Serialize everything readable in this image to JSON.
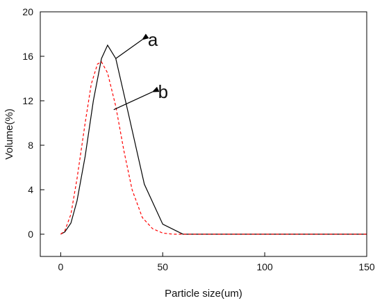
{
  "chart_data": {
    "type": "line",
    "title": "",
    "xlabel": "Particle size(um)",
    "ylabel": "Volume(%)",
    "xlim": [
      -10,
      150
    ],
    "ylim": [
      -2,
      20
    ],
    "xticks": [
      0,
      50,
      100,
      150
    ],
    "yticks": [
      0,
      4,
      8,
      12,
      16,
      20
    ],
    "grid": false,
    "legend": "none",
    "series": [
      {
        "id": "a",
        "color": "#000000",
        "dash": "solid",
        "x": [
          0,
          2,
          5,
          8,
          12,
          16,
          20,
          23,
          27,
          33,
          41,
          50,
          60,
          80,
          100,
          120,
          150
        ],
        "y": [
          0,
          0.2,
          1.0,
          3.0,
          7.0,
          12.0,
          15.8,
          17.0,
          15.8,
          11.0,
          4.5,
          0.9,
          0,
          0,
          0,
          0,
          0
        ]
      },
      {
        "id": "b",
        "color": "#ff0000",
        "dash": "dashed",
        "x": [
          0,
          2,
          5,
          8,
          12,
          15,
          18,
          20,
          23,
          27,
          31,
          35,
          40,
          45,
          50,
          55,
          60,
          80,
          100,
          120,
          150
        ],
        "y": [
          0,
          0.3,
          1.8,
          5.0,
          10.0,
          13.5,
          15.3,
          15.5,
          14.5,
          11.5,
          7.5,
          4.0,
          1.5,
          0.5,
          0.1,
          0,
          0,
          0,
          0,
          0,
          0
        ]
      }
    ],
    "annotations": [
      {
        "text": "a",
        "target_x": 27,
        "target_y": 15.8,
        "arrow_from_x": 40,
        "arrow_from_y": 17.5
      },
      {
        "text": "b",
        "target_x": 26,
        "target_y": 11.2,
        "arrow_from_x": 45,
        "arrow_from_y": 12.8
      }
    ]
  }
}
